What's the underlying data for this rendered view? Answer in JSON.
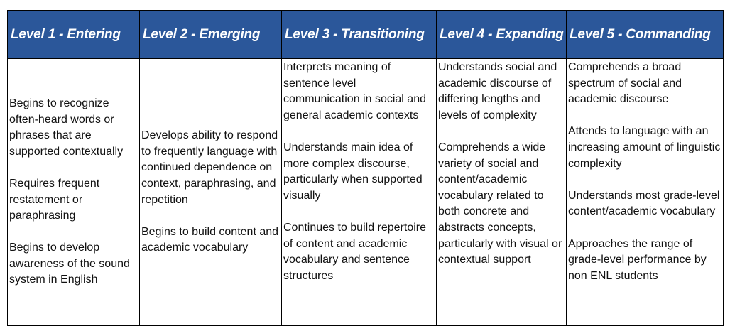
{
  "table": {
    "headers": [
      "Level 1 - Entering",
      "Level 2 - Emerging",
      "Level 3 - Transitioning",
      "Level 4 - Expanding",
      "Level 5 - Commanding"
    ],
    "columns": [
      [
        "Begins to recognize often-heard words or phrases that are supported contextually",
        "Requires frequent restatement or paraphrasing",
        "Begins to develop awareness of the sound system in English"
      ],
      [
        "Develops ability to respond to frequently language with continued dependence on context, paraphrasing, and repetition",
        "Begins to build content and academic vocabulary"
      ],
      [
        "Interprets meaning of sentence level communication in social and general academic contexts",
        "Understands main idea of more complex discourse, particularly when supported visually",
        "Continues to build repertoire of content and academic vocabulary and sentence structures"
      ],
      [
        "Understands social and academic discourse of differing lengths and levels of complexity",
        "Comprehends a wide variety of social and content/academic vocabulary related to both concrete and abstracts concepts, particularly with visual or contextual support"
      ],
      [
        "Comprehends a broad spectrum of social and academic discourse",
        "Attends to language with an increasing amount of linguistic complexity",
        "Understands most grade-level content/academic vocabulary",
        "Approaches the range of grade-level performance by non ENL students"
      ]
    ]
  }
}
